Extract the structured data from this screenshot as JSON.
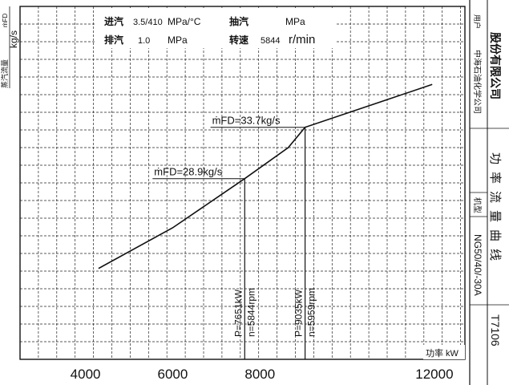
{
  "chart_data": {
    "type": "line",
    "title_block": {
      "inlet_label": "进汽",
      "inlet_value": "3.5/410",
      "inlet_unit": "MPa/°C",
      "extraction_label": "抽汽",
      "extraction_unit": "MPa",
      "exhaust_label": "排汽",
      "exhaust_value": "1.0",
      "exhaust_unit": "MPa",
      "speed_label": "转速",
      "speed_value": "5844",
      "speed_unit": "r/min"
    },
    "ylabel": "蒸汽流量",
    "ylabel_unit": "kg/s",
    "ylabel_corner": "ṁFD",
    "xlabel": "功率 kW",
    "x_ticks": [
      "4000",
      "6000",
      "8000",
      "12000"
    ],
    "x_tick_values": [
      4000,
      6000,
      8000,
      12000
    ],
    "xlim": [
      2500,
      12700
    ],
    "ylim": [
      12,
      45
    ],
    "grid": true,
    "series": [
      {
        "x": [
          4300,
          6000,
          7651,
          8650,
          9035,
          11950
        ],
        "y": [
          20.5,
          24.3,
          28.9,
          31.8,
          33.7,
          37.7
        ]
      }
    ],
    "annotations": [
      {
        "flow_label": "ṁFD=28.9kg/s",
        "power_label": "P=7651kW",
        "speed_label": "n=5844rpm",
        "x": 7651,
        "y": 28.9
      },
      {
        "flow_label": "ṁFD=33.7kg/s",
        "power_label": "P=9035kW",
        "speed_label": "n=5959rpm",
        "x": 9035,
        "y": 33.7
      }
    ]
  },
  "title_strip": {
    "company": "股份有限公司",
    "user_label": "用户",
    "user_value": "中海石油化学公司",
    "model_label": "机型",
    "model_value": "NG50/40/-30A",
    "drawing_title": "功率流量曲线",
    "drawing_no": "T7106"
  }
}
